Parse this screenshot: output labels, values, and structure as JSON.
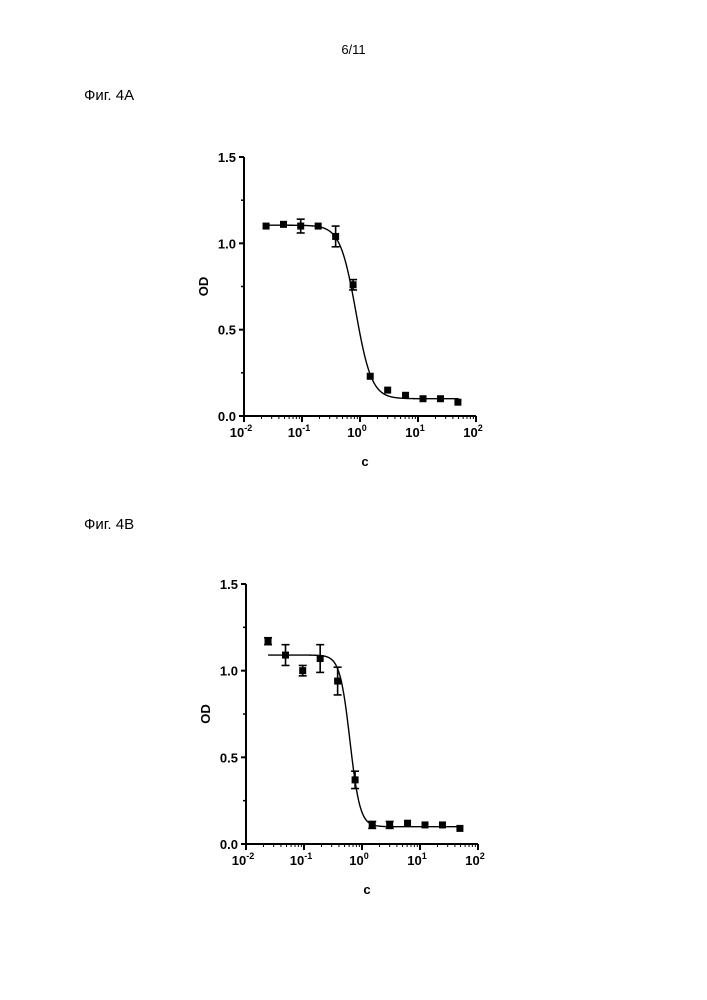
{
  "page": {
    "number": "6/11"
  },
  "chart_data": [
    {
      "id": "A",
      "type": "scatter",
      "figure_label": "Фиг. 4А",
      "xlabel": "c",
      "ylabel": "OD",
      "x_scale": "log",
      "xlim": [
        0.01,
        100
      ],
      "ylim": [
        0,
        1.5
      ],
      "y_ticks": [
        "0.0",
        "0.5",
        "1.0",
        "1.5"
      ],
      "x_ticks": [
        {
          "base": "10",
          "exp": "-2"
        },
        {
          "base": "10",
          "exp": "-1"
        },
        {
          "base": "10",
          "exp": "0"
        },
        {
          "base": "10",
          "exp": "1"
        },
        {
          "base": "10",
          "exp": "2"
        }
      ],
      "grid": false,
      "points": [
        {
          "x": 0.024,
          "y": 1.1,
          "err": 0.0
        },
        {
          "x": 0.048,
          "y": 1.11,
          "err": 0.0
        },
        {
          "x": 0.095,
          "y": 1.1,
          "err": 0.04
        },
        {
          "x": 0.19,
          "y": 1.1,
          "err": 0.0
        },
        {
          "x": 0.38,
          "y": 1.04,
          "err": 0.06
        },
        {
          "x": 0.76,
          "y": 0.76,
          "err": 0.03
        },
        {
          "x": 1.5,
          "y": 0.23,
          "err": 0.0
        },
        {
          "x": 3.0,
          "y": 0.15,
          "err": 0.0
        },
        {
          "x": 6.1,
          "y": 0.12,
          "err": 0.0
        },
        {
          "x": 12.2,
          "y": 0.1,
          "err": 0.0
        },
        {
          "x": 24.4,
          "y": 0.1,
          "err": 0.0
        },
        {
          "x": 48.8,
          "y": 0.08,
          "err": 0.0
        }
      ],
      "fit": {
        "top": 1.105,
        "bottom": 0.1,
        "ec50": 0.85,
        "hill": 3.2,
        "x_start": 0.024,
        "x_end": 50
      }
    },
    {
      "id": "B",
      "type": "scatter",
      "figure_label": "Фиг. 4В",
      "xlabel": "c",
      "ylabel": "OD",
      "x_scale": "log",
      "xlim": [
        0.01,
        100
      ],
      "ylim": [
        0,
        1.5
      ],
      "y_ticks": [
        "0.0",
        "0.5",
        "1.0",
        "1.5"
      ],
      "x_ticks": [
        {
          "base": "10",
          "exp": "-2"
        },
        {
          "base": "10",
          "exp": "-1"
        },
        {
          "base": "10",
          "exp": "0"
        },
        {
          "base": "10",
          "exp": "1"
        },
        {
          "base": "10",
          "exp": "2"
        }
      ],
      "grid": false,
      "points": [
        {
          "x": 0.024,
          "y": 1.17,
          "err": 0.02
        },
        {
          "x": 0.048,
          "y": 1.09,
          "err": 0.06
        },
        {
          "x": 0.095,
          "y": 1.0,
          "err": 0.03
        },
        {
          "x": 0.19,
          "y": 1.07,
          "err": 0.08
        },
        {
          "x": 0.38,
          "y": 0.94,
          "err": 0.08
        },
        {
          "x": 0.76,
          "y": 0.37,
          "err": 0.05
        },
        {
          "x": 1.5,
          "y": 0.11,
          "err": 0.02
        },
        {
          "x": 3.0,
          "y": 0.11,
          "err": 0.02
        },
        {
          "x": 6.1,
          "y": 0.12,
          "err": 0.0
        },
        {
          "x": 12.2,
          "y": 0.11,
          "err": 0.0
        },
        {
          "x": 24.4,
          "y": 0.11,
          "err": 0.0
        },
        {
          "x": 48.8,
          "y": 0.09,
          "err": 0.0
        }
      ],
      "fit": {
        "top": 1.09,
        "bottom": 0.1,
        "ec50": 0.62,
        "hill": 5.0,
        "x_start": 0.024,
        "x_end": 50
      }
    }
  ]
}
